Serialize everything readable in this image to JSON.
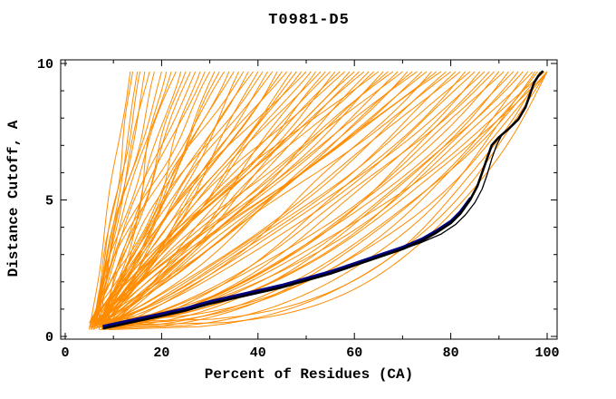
{
  "chart_data": {
    "type": "line",
    "title": "T0981-D5",
    "xlabel": "Percent of Residues (CA)",
    "ylabel": "Distance Cutoff, A",
    "xlim": [
      0,
      100
    ],
    "ylim": [
      0,
      10
    ],
    "x_major_ticks": [
      0,
      20,
      40,
      60,
      80,
      100
    ],
    "x_minor_step": 10,
    "y_major_ticks": [
      0,
      5,
      10
    ],
    "y_minor_step": 1,
    "grid": false,
    "legend": "none",
    "colors": {
      "models": "#ff8c00",
      "highlight_black": "#000000",
      "highlight_navy": "#000080",
      "axis": "#000000",
      "background": "#ffffff"
    },
    "series": [
      {
        "name": "navy-model",
        "color": "#000080",
        "width": 3,
        "points": [
          [
            8,
            0.38
          ],
          [
            12,
            0.53
          ],
          [
            16,
            0.68
          ],
          [
            20,
            0.83
          ],
          [
            25,
            1.03
          ],
          [
            30,
            1.28
          ],
          [
            35,
            1.48
          ],
          [
            40,
            1.68
          ],
          [
            45,
            1.88
          ],
          [
            50,
            2.13
          ],
          [
            55,
            2.38
          ],
          [
            60,
            2.67
          ],
          [
            65,
            2.97
          ],
          [
            70,
            3.27
          ],
          [
            74,
            3.57
          ],
          [
            77,
            3.87
          ],
          [
            80,
            4.22
          ],
          [
            82,
            4.57
          ],
          [
            84,
            5.05
          ]
        ]
      },
      {
        "name": "black-model-2",
        "color": "#000000",
        "width": 1.3,
        "points": [
          [
            8,
            0.3
          ],
          [
            12,
            0.45
          ],
          [
            16,
            0.6
          ],
          [
            20,
            0.75
          ],
          [
            25,
            0.95
          ],
          [
            30,
            1.2
          ],
          [
            35,
            1.4
          ],
          [
            40,
            1.6
          ],
          [
            45,
            1.8
          ],
          [
            50,
            2.05
          ],
          [
            55,
            2.3
          ],
          [
            60,
            2.6
          ],
          [
            65,
            2.9
          ],
          [
            70,
            3.2
          ],
          [
            74,
            3.45
          ],
          [
            78,
            3.75
          ],
          [
            81,
            4.1
          ],
          [
            83,
            4.45
          ],
          [
            85,
            4.9
          ],
          [
            86.5,
            5.4
          ],
          [
            87.5,
            5.9
          ],
          [
            88.5,
            6.5
          ],
          [
            89.5,
            7.0
          ],
          [
            90.5,
            7.35
          ],
          [
            92,
            7.6
          ],
          [
            94,
            7.95
          ],
          [
            95.5,
            8.4
          ],
          [
            96.5,
            8.9
          ],
          [
            97.3,
            9.3
          ],
          [
            98.2,
            9.55
          ],
          [
            99,
            9.7
          ]
        ]
      },
      {
        "name": "black-model-1",
        "color": "#000000",
        "width": 2.6,
        "points": [
          [
            8,
            0.3
          ],
          [
            12,
            0.45
          ],
          [
            16,
            0.6
          ],
          [
            20,
            0.75
          ],
          [
            25,
            0.95
          ],
          [
            30,
            1.2
          ],
          [
            35,
            1.4
          ],
          [
            40,
            1.6
          ],
          [
            45,
            1.8
          ],
          [
            50,
            2.05
          ],
          [
            55,
            2.3
          ],
          [
            60,
            2.6
          ],
          [
            65,
            2.9
          ],
          [
            70,
            3.2
          ],
          [
            74,
            3.5
          ],
          [
            77,
            3.8
          ],
          [
            80,
            4.15
          ],
          [
            82,
            4.5
          ],
          [
            84,
            5.0
          ],
          [
            85.5,
            5.5
          ],
          [
            86.5,
            6.0
          ],
          [
            87.5,
            6.5
          ],
          [
            88.5,
            7.0
          ],
          [
            90,
            7.3
          ],
          [
            92,
            7.6
          ],
          [
            94,
            7.95
          ],
          [
            95.5,
            8.4
          ],
          [
            96.5,
            8.9
          ],
          [
            97.3,
            9.3
          ],
          [
            98.2,
            9.55
          ],
          [
            99,
            9.7
          ]
        ]
      }
    ],
    "model_curves": {
      "color": "#ff8c00",
      "count": 94,
      "params_format": [
        "start_percent",
        "top_percent",
        "shape_exponent",
        "wave_amplitude_percent",
        "wave_frequency",
        "wave_phase"
      ],
      "params": [
        [
          5.0,
          13.5,
          1.0,
          0.4,
          1.2,
          0.5
        ],
        [
          6.0,
          14.0,
          0.92,
          0.5,
          1.6,
          2.1
        ],
        [
          6.8,
          15.0,
          1.05,
          0.4,
          1.0,
          4.0
        ],
        [
          5.5,
          15.5,
          0.95,
          0.6,
          1.4,
          1.2
        ],
        [
          7.2,
          16.5,
          1.0,
          0.5,
          0.9,
          3.3
        ],
        [
          6.2,
          17.5,
          1.1,
          0.6,
          1.1,
          5.1
        ],
        [
          5.0,
          18.5,
          0.9,
          0.7,
          1.5,
          0.8
        ],
        [
          6.5,
          20.0,
          1.2,
          0.9,
          1.0,
          2.6
        ],
        [
          7.5,
          21.0,
          0.85,
          1.1,
          1.3,
          4.4
        ],
        [
          5.2,
          22.0,
          1.0,
          1.0,
          0.8,
          1.7
        ],
        [
          6.0,
          23.0,
          1.3,
          0.9,
          1.2,
          3.9
        ],
        [
          7.0,
          24.0,
          0.9,
          1.2,
          1.0,
          0.3
        ],
        [
          8.0,
          25.0,
          1.1,
          1.0,
          1.5,
          2.9
        ],
        [
          5.5,
          26.0,
          1.0,
          1.3,
          0.9,
          5.4
        ],
        [
          6.5,
          27.0,
          1.2,
          0.8,
          1.1,
          1.5
        ],
        [
          7.5,
          28.0,
          0.88,
          1.2,
          1.4,
          3.6
        ],
        [
          5.0,
          29.0,
          1.05,
          1.0,
          1.0,
          0.9
        ],
        [
          6.0,
          30.0,
          1.15,
          1.4,
          1.2,
          2.3
        ],
        [
          7.0,
          31.0,
          0.92,
          1.2,
          0.9,
          4.7
        ],
        [
          8.2,
          32.0,
          1.1,
          1.0,
          1.6,
          1.1
        ],
        [
          5.4,
          33.0,
          1.25,
          1.3,
          1.0,
          3.2
        ],
        [
          6.4,
          34.0,
          0.95,
          1.1,
          1.3,
          5.6
        ],
        [
          7.4,
          35.0,
          1.05,
          1.4,
          0.8,
          0.6
        ],
        [
          8.4,
          36.0,
          0.9,
          1.0,
          1.1,
          2.8
        ],
        [
          5.6,
          37.0,
          1.15,
          1.2,
          1.5,
          4.9
        ],
        [
          6.6,
          38.0,
          1.0,
          1.3,
          1.0,
          1.4
        ],
        [
          7.6,
          39.0,
          1.2,
          0.9,
          1.2,
          3.5
        ],
        [
          8.6,
          40.0,
          0.85,
          1.1,
          0.9,
          5.8
        ],
        [
          5.0,
          41.0,
          1.1,
          1.4,
          1.3,
          0.2
        ],
        [
          6.0,
          42.0,
          0.95,
          1.2,
          1.0,
          2.4
        ],
        [
          7.0,
          43.0,
          1.2,
          1.0,
          1.6,
          4.6
        ],
        [
          8.0,
          44.0,
          0.9,
          1.5,
          1.1,
          1.0
        ],
        [
          5.5,
          45.0,
          1.05,
          1.1,
          0.9,
          3.1
        ],
        [
          6.5,
          46.0,
          1.15,
          1.3,
          1.2,
          5.3
        ],
        [
          7.5,
          47.0,
          0.95,
          1.0,
          1.4,
          0.7
        ],
        [
          8.5,
          48.0,
          1.1,
          1.4,
          1.0,
          2.7
        ],
        [
          5.2,
          49.0,
          0.9,
          1.2,
          1.2,
          4.8
        ],
        [
          6.2,
          50.0,
          1.2,
          1.5,
          0.9,
          1.3
        ],
        [
          7.2,
          51.0,
          1.0,
          1.1,
          1.5,
          3.4
        ],
        [
          8.2,
          52.0,
          0.85,
          1.3,
          1.1,
          5.5
        ],
        [
          5.8,
          53.0,
          1.1,
          1.2,
          1.0,
          0.4
        ],
        [
          6.8,
          54.0,
          0.92,
          1.5,
          1.3,
          2.2
        ],
        [
          7.8,
          55.0,
          1.15,
          1.1,
          0.8,
          4.3
        ],
        [
          8.8,
          56.0,
          0.95,
          1.3,
          1.2,
          1.6
        ],
        [
          5.3,
          57.0,
          1.05,
          1.5,
          1.0,
          3.8
        ],
        [
          6.3,
          58.0,
          1.2,
          1.1,
          1.4,
          5.9
        ],
        [
          7.3,
          59.0,
          0.88,
          1.4,
          1.0,
          0.1
        ],
        [
          8.3,
          60.0,
          1.1,
          1.2,
          1.2,
          2.5
        ],
        [
          5.7,
          61.0,
          0.95,
          1.5,
          0.9,
          4.5
        ],
        [
          6.7,
          62.0,
          1.15,
          1.0,
          1.3,
          1.8
        ],
        [
          7.7,
          63.0,
          0.9,
          1.4,
          1.1,
          3.7
        ],
        [
          8.7,
          64.0,
          1.05,
          1.2,
          1.5,
          5.2
        ],
        [
          5.1,
          65.0,
          1.2,
          1.4,
          1.0,
          0.6
        ],
        [
          6.1,
          66.0,
          0.85,
          1.1,
          1.2,
          2.0
        ],
        [
          7.1,
          67.0,
          1.0,
          1.5,
          0.9,
          4.2
        ],
        [
          8.1,
          68.0,
          1.15,
          1.2,
          1.4,
          1.9
        ],
        [
          5.9,
          69.0,
          0.9,
          1.4,
          1.0,
          3.0
        ],
        [
          6.9,
          70.0,
          1.05,
          1.1,
          1.2,
          5.0
        ],
        [
          7.9,
          71.0,
          0.8,
          1.5,
          1.1,
          0.8
        ],
        [
          8.9,
          72.0,
          0.95,
          1.2,
          1.3,
          2.6
        ],
        [
          5.4,
          73.0,
          1.1,
          1.4,
          0.9,
          4.4
        ],
        [
          6.4,
          74.0,
          0.85,
          1.1,
          1.2,
          1.2
        ],
        [
          7.4,
          75.0,
          1.0,
          1.5,
          1.0,
          3.3
        ],
        [
          8.4,
          76.0,
          0.75,
          1.2,
          1.4,
          5.6
        ],
        [
          5.6,
          77.0,
          0.9,
          1.4,
          1.0,
          0.3
        ],
        [
          6.6,
          78.0,
          1.05,
          1.1,
          1.2,
          2.8
        ],
        [
          7.6,
          79.0,
          0.8,
          1.5,
          0.9,
          4.7
        ],
        [
          8.6,
          80.0,
          0.95,
          1.2,
          1.3,
          1.5
        ],
        [
          6.0,
          81.0,
          0.7,
          1.4,
          1.1,
          3.6
        ],
        [
          7.0,
          82.0,
          0.85,
          1.1,
          1.0,
          5.7
        ],
        [
          8.0,
          83.0,
          0.65,
          1.3,
          1.2,
          0.9
        ],
        [
          9.0,
          84.0,
          0.8,
          1.0,
          1.4,
          2.4
        ],
        [
          6.5,
          85.0,
          0.7,
          1.2,
          1.0,
          4.1
        ],
        [
          7.5,
          86.0,
          0.6,
          1.0,
          1.2,
          1.1
        ],
        [
          8.5,
          87.0,
          0.75,
          1.3,
          0.9,
          3.2
        ],
        [
          9.2,
          88.0,
          0.58,
          1.0,
          1.1,
          5.4
        ],
        [
          6.8,
          89.0,
          0.68,
          1.2,
          1.3,
          0.5
        ],
        [
          7.8,
          90.0,
          0.55,
          0.9,
          1.0,
          2.2
        ],
        [
          8.8,
          91.0,
          0.65,
          1.1,
          1.2,
          4.3
        ],
        [
          9.4,
          92.0,
          0.52,
          0.9,
          1.1,
          1.7
        ],
        [
          7.2,
          93.0,
          0.62,
          1.1,
          0.9,
          3.9
        ],
        [
          8.2,
          94.0,
          0.5,
          0.9,
          1.2,
          5.8
        ],
        [
          9.0,
          95.0,
          0.58,
          1.0,
          1.0,
          1.0
        ],
        [
          9.6,
          96.0,
          0.46,
          0.8,
          1.1,
          3.0
        ],
        [
          8.0,
          97.0,
          0.55,
          1.0,
          1.2,
          5.1
        ],
        [
          9.2,
          98.0,
          0.44,
          0.8,
          1.0,
          0.4
        ],
        [
          9.8,
          99.0,
          0.5,
          0.9,
          1.1,
          2.3
        ],
        [
          8.6,
          100.0,
          0.42,
          0.8,
          1.2,
          4.0
        ],
        [
          9.4,
          100.0,
          0.55,
          1.0,
          0.9,
          1.4
        ],
        [
          10.0,
          99.5,
          0.65,
          1.1,
          1.1,
          3.5
        ],
        [
          9.0,
          100.0,
          0.35,
          0.7,
          1.0,
          5.0
        ],
        [
          9.6,
          98.5,
          0.32,
          0.7,
          1.2,
          0.7
        ],
        [
          10.0,
          100.0,
          0.3,
          0.6,
          1.0,
          2.9
        ],
        [
          8.8,
          97.5,
          0.38,
          0.8,
          1.1,
          4.6
        ]
      ]
    }
  }
}
